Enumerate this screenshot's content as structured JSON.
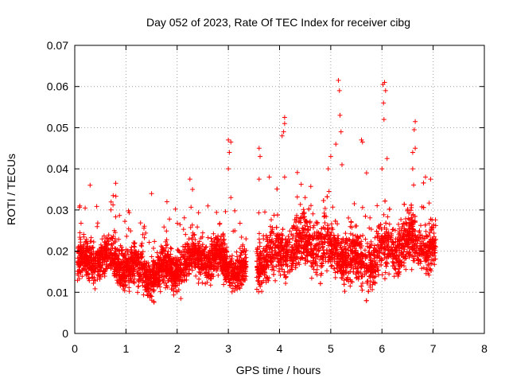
{
  "chart_data": {
    "type": "scatter",
    "title": "Day 052 of 2023, Rate Of TEC Index for receiver cibg",
    "xlabel": "GPS time / hours",
    "ylabel": "ROTI / TECUs",
    "xlim": [
      0,
      8
    ],
    "ylim": [
      0,
      0.07
    ],
    "xticks": [
      0,
      1,
      2,
      3,
      4,
      5,
      6,
      7,
      8
    ],
    "xtick_labels": [
      "0",
      "1",
      "2",
      "3",
      "4",
      "5",
      "6",
      "7",
      "8"
    ],
    "yticks": [
      0,
      0.01,
      0.02,
      0.03,
      0.04,
      0.05,
      0.06,
      0.07
    ],
    "ytick_labels": [
      "0",
      "0.01",
      "0.02",
      "0.03",
      "0.04",
      "0.05",
      "0.06",
      "0.07"
    ],
    "grid": true,
    "marker": "+",
    "color": "#ff0000",
    "series": [
      {
        "name": "ROTI",
        "note": "dense cloud of samples from 0.05 h to 3.35 h and 3.55 h to 7.05 h; data gap between ~3.35 h and ~3.55 h",
        "segments": [
          {
            "x_start": 0.05,
            "x_end": 3.35,
            "typical_min": 0.009,
            "typical_max": 0.026,
            "center": 0.0165
          },
          {
            "x_start": 3.55,
            "x_end": 7.05,
            "typical_min": 0.01,
            "typical_max": 0.032,
            "center": 0.02
          }
        ],
        "notable_points": [
          {
            "x": 0.1,
            "y": 0.031
          },
          {
            "x": 0.3,
            "y": 0.036
          },
          {
            "x": 0.75,
            "y": 0.0335
          },
          {
            "x": 0.8,
            "y": 0.0365
          },
          {
            "x": 1.5,
            "y": 0.034
          },
          {
            "x": 1.8,
            "y": 0.032
          },
          {
            "x": 2.25,
            "y": 0.0375
          },
          {
            "x": 2.3,
            "y": 0.035
          },
          {
            "x": 2.6,
            "y": 0.031
          },
          {
            "x": 3.0,
            "y": 0.047
          },
          {
            "x": 3.05,
            "y": 0.0465
          },
          {
            "x": 3.02,
            "y": 0.044
          },
          {
            "x": 3.0,
            "y": 0.04
          },
          {
            "x": 3.05,
            "y": 0.033
          },
          {
            "x": 3.6,
            "y": 0.045
          },
          {
            "x": 3.62,
            "y": 0.043
          },
          {
            "x": 3.6,
            "y": 0.0375
          },
          {
            "x": 3.8,
            "y": 0.038
          },
          {
            "x": 4.05,
            "y": 0.048
          },
          {
            "x": 4.08,
            "y": 0.049
          },
          {
            "x": 4.1,
            "y": 0.0525
          },
          {
            "x": 4.1,
            "y": 0.051
          },
          {
            "x": 4.1,
            "y": 0.038
          },
          {
            "x": 4.5,
            "y": 0.033
          },
          {
            "x": 4.95,
            "y": 0.04
          },
          {
            "x": 5.0,
            "y": 0.043
          },
          {
            "x": 5.1,
            "y": 0.046
          },
          {
            "x": 5.15,
            "y": 0.0615
          },
          {
            "x": 5.17,
            "y": 0.059
          },
          {
            "x": 5.18,
            "y": 0.053
          },
          {
            "x": 5.2,
            "y": 0.049
          },
          {
            "x": 5.22,
            "y": 0.041
          },
          {
            "x": 5.6,
            "y": 0.047
          },
          {
            "x": 5.62,
            "y": 0.0465
          },
          {
            "x": 5.7,
            "y": 0.039
          },
          {
            "x": 6.02,
            "y": 0.0605
          },
          {
            "x": 6.05,
            "y": 0.061
          },
          {
            "x": 6.07,
            "y": 0.059
          },
          {
            "x": 6.03,
            "y": 0.056
          },
          {
            "x": 6.04,
            "y": 0.052
          },
          {
            "x": 6.1,
            "y": 0.0425
          },
          {
            "x": 6.0,
            "y": 0.04
          },
          {
            "x": 6.65,
            "y": 0.0515
          },
          {
            "x": 6.63,
            "y": 0.0495
          },
          {
            "x": 6.65,
            "y": 0.045
          },
          {
            "x": 6.6,
            "y": 0.044
          },
          {
            "x": 6.6,
            "y": 0.04
          },
          {
            "x": 6.85,
            "y": 0.038
          },
          {
            "x": 6.95,
            "y": 0.0375
          }
        ],
        "minimum_visible": 0.005,
        "maximum_visible": 0.0615
      }
    ]
  }
}
